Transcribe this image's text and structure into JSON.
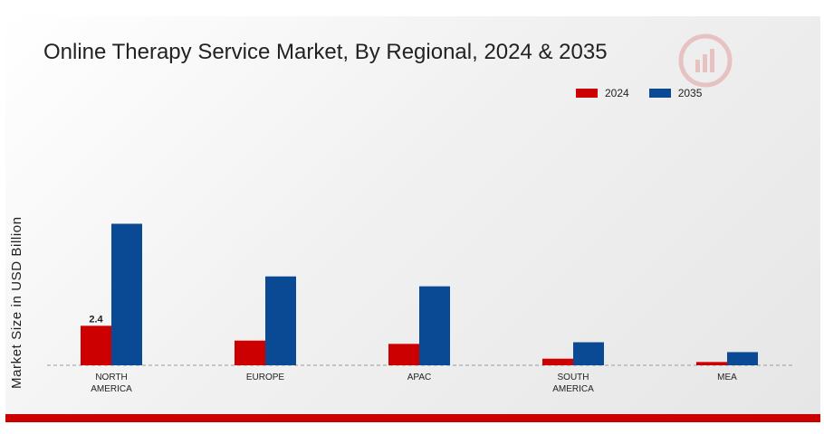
{
  "title": "Online Therapy Service Market, By Regional, 2024 & 2035",
  "y_axis_label": "Market Size in USD Billion",
  "legend": [
    {
      "label": "2024",
      "color": "#cc0000"
    },
    {
      "label": "2035",
      "color": "#0a4a94"
    }
  ],
  "colors": {
    "accent_bar": "#cc0000",
    "series_2024": "#cc0000",
    "series_2035": "#0a4a94"
  },
  "chart_data": {
    "type": "bar",
    "title": "Online Therapy Service Market, By Regional, 2024 & 2035",
    "xlabel": "",
    "ylabel": "Market Size in USD Billion",
    "categories": [
      [
        "NORTH",
        "AMERICA"
      ],
      [
        "EUROPE"
      ],
      [
        "APAC"
      ],
      [
        "SOUTH",
        "AMERICA"
      ],
      [
        "MEA"
      ]
    ],
    "series": [
      {
        "name": "2024",
        "values": [
          2.4,
          1.5,
          1.3,
          0.4,
          0.2
        ]
      },
      {
        "name": "2035",
        "values": [
          8.6,
          5.4,
          4.8,
          1.4,
          0.8
        ]
      }
    ],
    "data_labels": [
      {
        "series": 0,
        "index": 0,
        "text": "2.4"
      }
    ],
    "ylim": [
      0,
      10
    ],
    "grid": false,
    "baseline": "dashed",
    "legend_position": "top-right"
  }
}
